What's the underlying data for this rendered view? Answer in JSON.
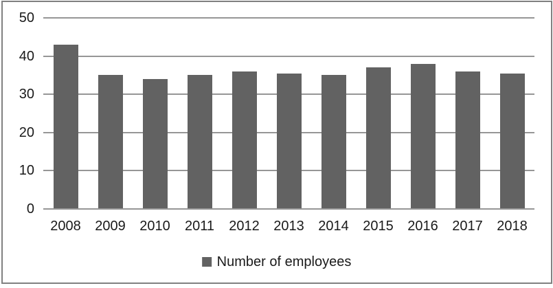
{
  "chart_data": {
    "type": "bar",
    "title": "",
    "categories": [
      "2008",
      "2009",
      "2010",
      "2011",
      "2012",
      "2013",
      "2014",
      "2015",
      "2016",
      "2017",
      "2018"
    ],
    "series": [
      {
        "name": "Number of employees",
        "values": [
          43,
          35,
          34,
          35,
          36,
          35.5,
          35,
          37,
          38,
          36,
          35.5
        ],
        "color": "#626262"
      }
    ],
    "xlabel": "",
    "ylabel": "",
    "ylim": [
      0,
      50
    ],
    "yticks": [
      0,
      10,
      20,
      30,
      40,
      50
    ],
    "grid": true,
    "legend_position": "bottom"
  },
  "legend": {
    "label": "Number of employees"
  },
  "colors": {
    "bar": "#626262",
    "gridline": "#969696",
    "axis_line": "#969696",
    "text": "#1a1a1a",
    "frame_border": "#808080",
    "background": "#ffffff"
  }
}
